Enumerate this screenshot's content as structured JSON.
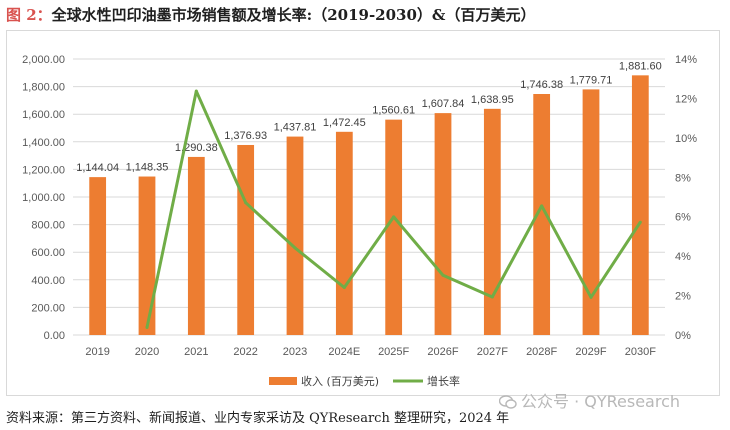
{
  "figure": {
    "label": "图 2：",
    "title": "全球水性凹印油墨市场销售额及增长率:（2019-2030）&（百万美元）"
  },
  "source_note": "资料来源：第三方资料、新闻报道、业内专家采访及 QYResearch 整理研究，2024 年",
  "watermark": "公众号 · QYResearch",
  "chart_data": {
    "type": "bar",
    "categories": [
      "2019",
      "2020",
      "2021",
      "2022",
      "2023",
      "2024E",
      "2025F",
      "2026F",
      "2027F",
      "2028F",
      "2029F",
      "2030F"
    ],
    "series": [
      {
        "name": "收入 (百万美元)",
        "type": "bar",
        "axis": "left",
        "color": "#ED7D31",
        "values": [
          1144.04,
          1148.35,
          1290.38,
          1376.93,
          1437.81,
          1472.45,
          1560.61,
          1607.84,
          1638.95,
          1746.38,
          1779.71,
          1881.6
        ],
        "labels": [
          "1,144.04",
          "1,148.35",
          "1,290.38",
          "1,376.93",
          "1,437.81",
          "1,472.45",
          "1,560.61",
          "1,607.84",
          "1,638.95",
          "1,746.38",
          "1,779.71",
          "1,881.60"
        ]
      },
      {
        "name": "增长率",
        "type": "line",
        "axis": "right",
        "color": "#70AD47",
        "x": [
          "2020",
          "2021",
          "2022",
          "2023",
          "2024E",
          "2025F",
          "2026F",
          "2027F",
          "2028F",
          "2029F",
          "2030F"
        ],
        "values": [
          0.38,
          12.37,
          6.71,
          4.42,
          2.41,
          5.99,
          3.03,
          1.93,
          6.55,
          1.91,
          5.72
        ]
      }
    ],
    "y_left": {
      "ylim": [
        0,
        2000
      ],
      "ticks": [
        0,
        200,
        400,
        600,
        800,
        1000,
        1200,
        1400,
        1600,
        1800,
        2000
      ],
      "tick_labels": [
        "0.00",
        "200.00",
        "400.00",
        "600.00",
        "800.00",
        "1,000.00",
        "1,200.00",
        "1,400.00",
        "1,600.00",
        "1,800.00",
        "2,000.00"
      ]
    },
    "y_right": {
      "ylim": [
        0,
        14
      ],
      "ticks": [
        0,
        2,
        4,
        6,
        8,
        10,
        12,
        14
      ],
      "tick_labels": [
        "0%",
        "2%",
        "4%",
        "6%",
        "8%",
        "10%",
        "12%",
        "14%"
      ]
    },
    "grid": true,
    "legend": "bottom"
  }
}
